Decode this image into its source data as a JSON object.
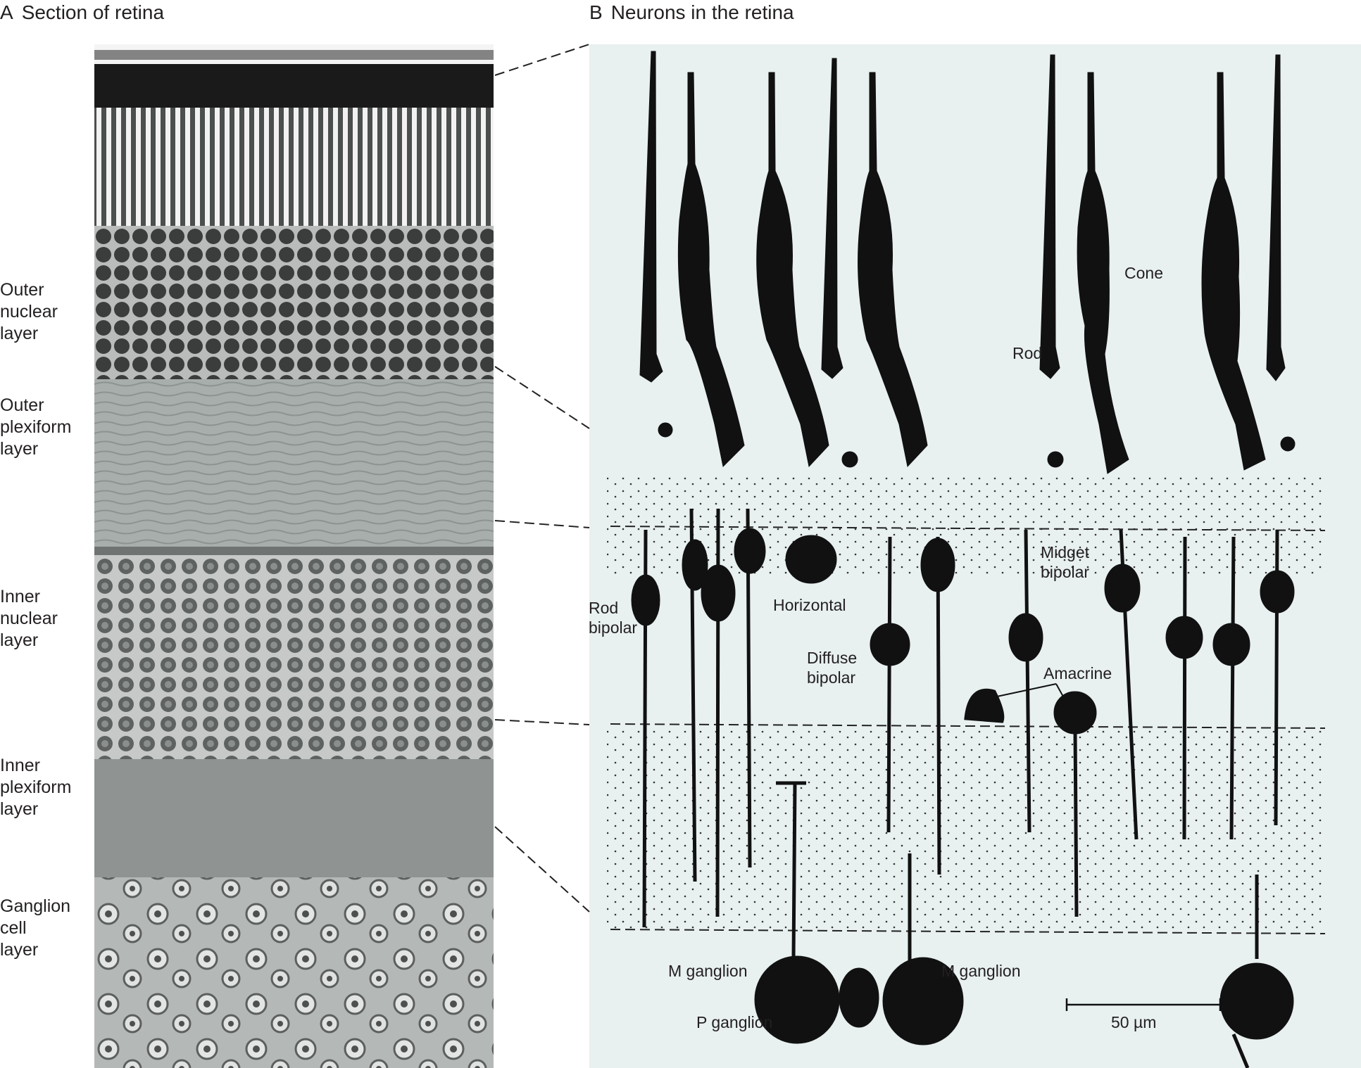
{
  "panel_a": {
    "letter": "A",
    "title": "Section of retina"
  },
  "panel_b": {
    "letter": "B",
    "title": "Neurons in the retina"
  },
  "layers": [
    {
      "key": "outer_nuclear",
      "label": "Outer\nnuclear\nlayer"
    },
    {
      "key": "outer_plexiform",
      "label": "Outer\nplexiform\nlayer"
    },
    {
      "key": "inner_nuclear",
      "label": "Inner\nnuclear\nlayer"
    },
    {
      "key": "inner_plexiform",
      "label": "Inner\nplexiform\nlayer"
    },
    {
      "key": "ganglion",
      "label": "Ganglion\ncell\nlayer"
    }
  ],
  "cells": {
    "cone": "Cone",
    "rod": "Rod",
    "rod_bipolar": "Rod\nbipolar",
    "horizontal": "Horizontal",
    "midget_bipolar": "Midget\nbipolar",
    "diffuse_bipolar": "Diffuse\nbipolar",
    "amacrine": "Amacrine",
    "m_ganglion_left": "M ganglion",
    "m_ganglion_right": "M ganglion",
    "p_ganglion": "P ganglion"
  },
  "scale_bar": "50 µm",
  "colors": {
    "text": "#231f20",
    "micrograph_background": "#9ea3a1",
    "diagram_background": "#e8f0f0",
    "cell_ink": "#111111"
  }
}
